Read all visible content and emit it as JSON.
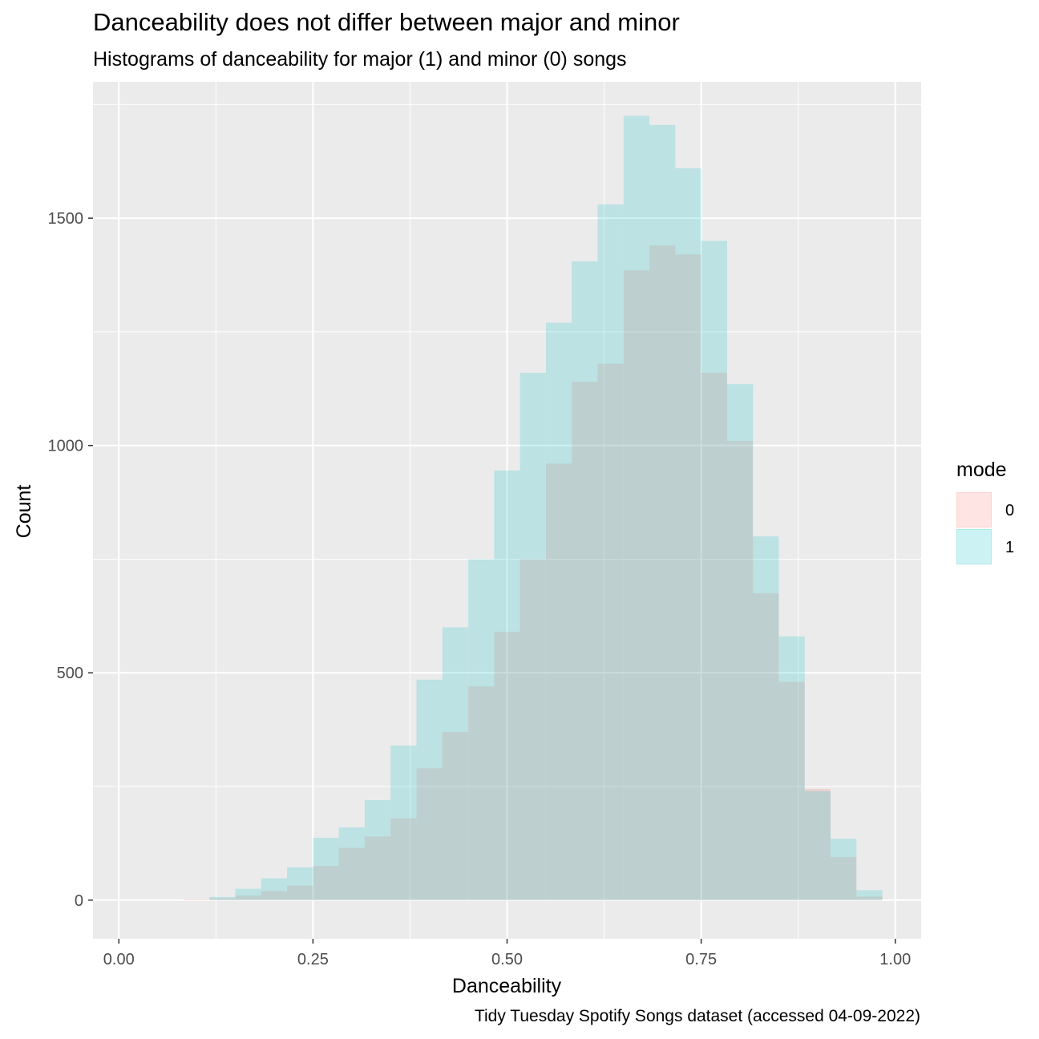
{
  "colors": {
    "mode0": "#F8766D",
    "mode1": "#00BFC4",
    "panel": "#EBEBEB",
    "grid": "#FFFFFF",
    "tick_text": "#4D4D4D"
  },
  "chart_data": {
    "type": "bar",
    "subtype": "histogram-overlay",
    "title": "Danceability does not differ between major and minor",
    "subtitle": "Histograms of danceability for major (1) and minor (0) songs",
    "caption": "Tidy Tuesday Spotify Songs dataset (accessed 04-09-2022)",
    "xlabel": "Danceability",
    "ylabel": "Count",
    "xlim": [
      -0.0333,
      1.0333
    ],
    "ylim": [
      -85,
      1800
    ],
    "xticks": [
      0.0,
      0.25,
      0.5,
      0.75,
      1.0
    ],
    "xtick_labels": [
      "0.00",
      "0.25",
      "0.50",
      "0.75",
      "1.00"
    ],
    "yticks": [
      0,
      500,
      1000,
      1500
    ],
    "ytick_labels": [
      "0",
      "500",
      "1000",
      "1500"
    ],
    "grid": true,
    "legend": {
      "title": "mode",
      "position": "right",
      "entries": [
        "0",
        "1"
      ]
    },
    "bin_width": 0.0333,
    "bin_centers": [
      0.0,
      0.0333,
      0.0667,
      0.1,
      0.1333,
      0.1667,
      0.2,
      0.2333,
      0.2667,
      0.3,
      0.3333,
      0.3667,
      0.4,
      0.4333,
      0.4667,
      0.5,
      0.5333,
      0.5667,
      0.6,
      0.6333,
      0.6667,
      0.7,
      0.7333,
      0.7667,
      0.8,
      0.8333,
      0.8667,
      0.9,
      0.9333,
      0.9667,
      1.0
    ],
    "series": [
      {
        "name": "0",
        "values": [
          0,
          0,
          0,
          2,
          4,
          10,
          20,
          32,
          75,
          115,
          140,
          180,
          290,
          370,
          470,
          590,
          750,
          960,
          1140,
          1180,
          1385,
          1440,
          1420,
          1160,
          1010,
          675,
          480,
          245,
          95,
          8,
          0
        ]
      },
      {
        "name": "1",
        "values": [
          0,
          0,
          0,
          0,
          7,
          25,
          48,
          72,
          137,
          160,
          220,
          340,
          485,
          600,
          750,
          945,
          1160,
          1270,
          1405,
          1530,
          1725,
          1705,
          1610,
          1450,
          1135,
          800,
          580,
          240,
          135,
          22,
          0
        ]
      }
    ]
  }
}
